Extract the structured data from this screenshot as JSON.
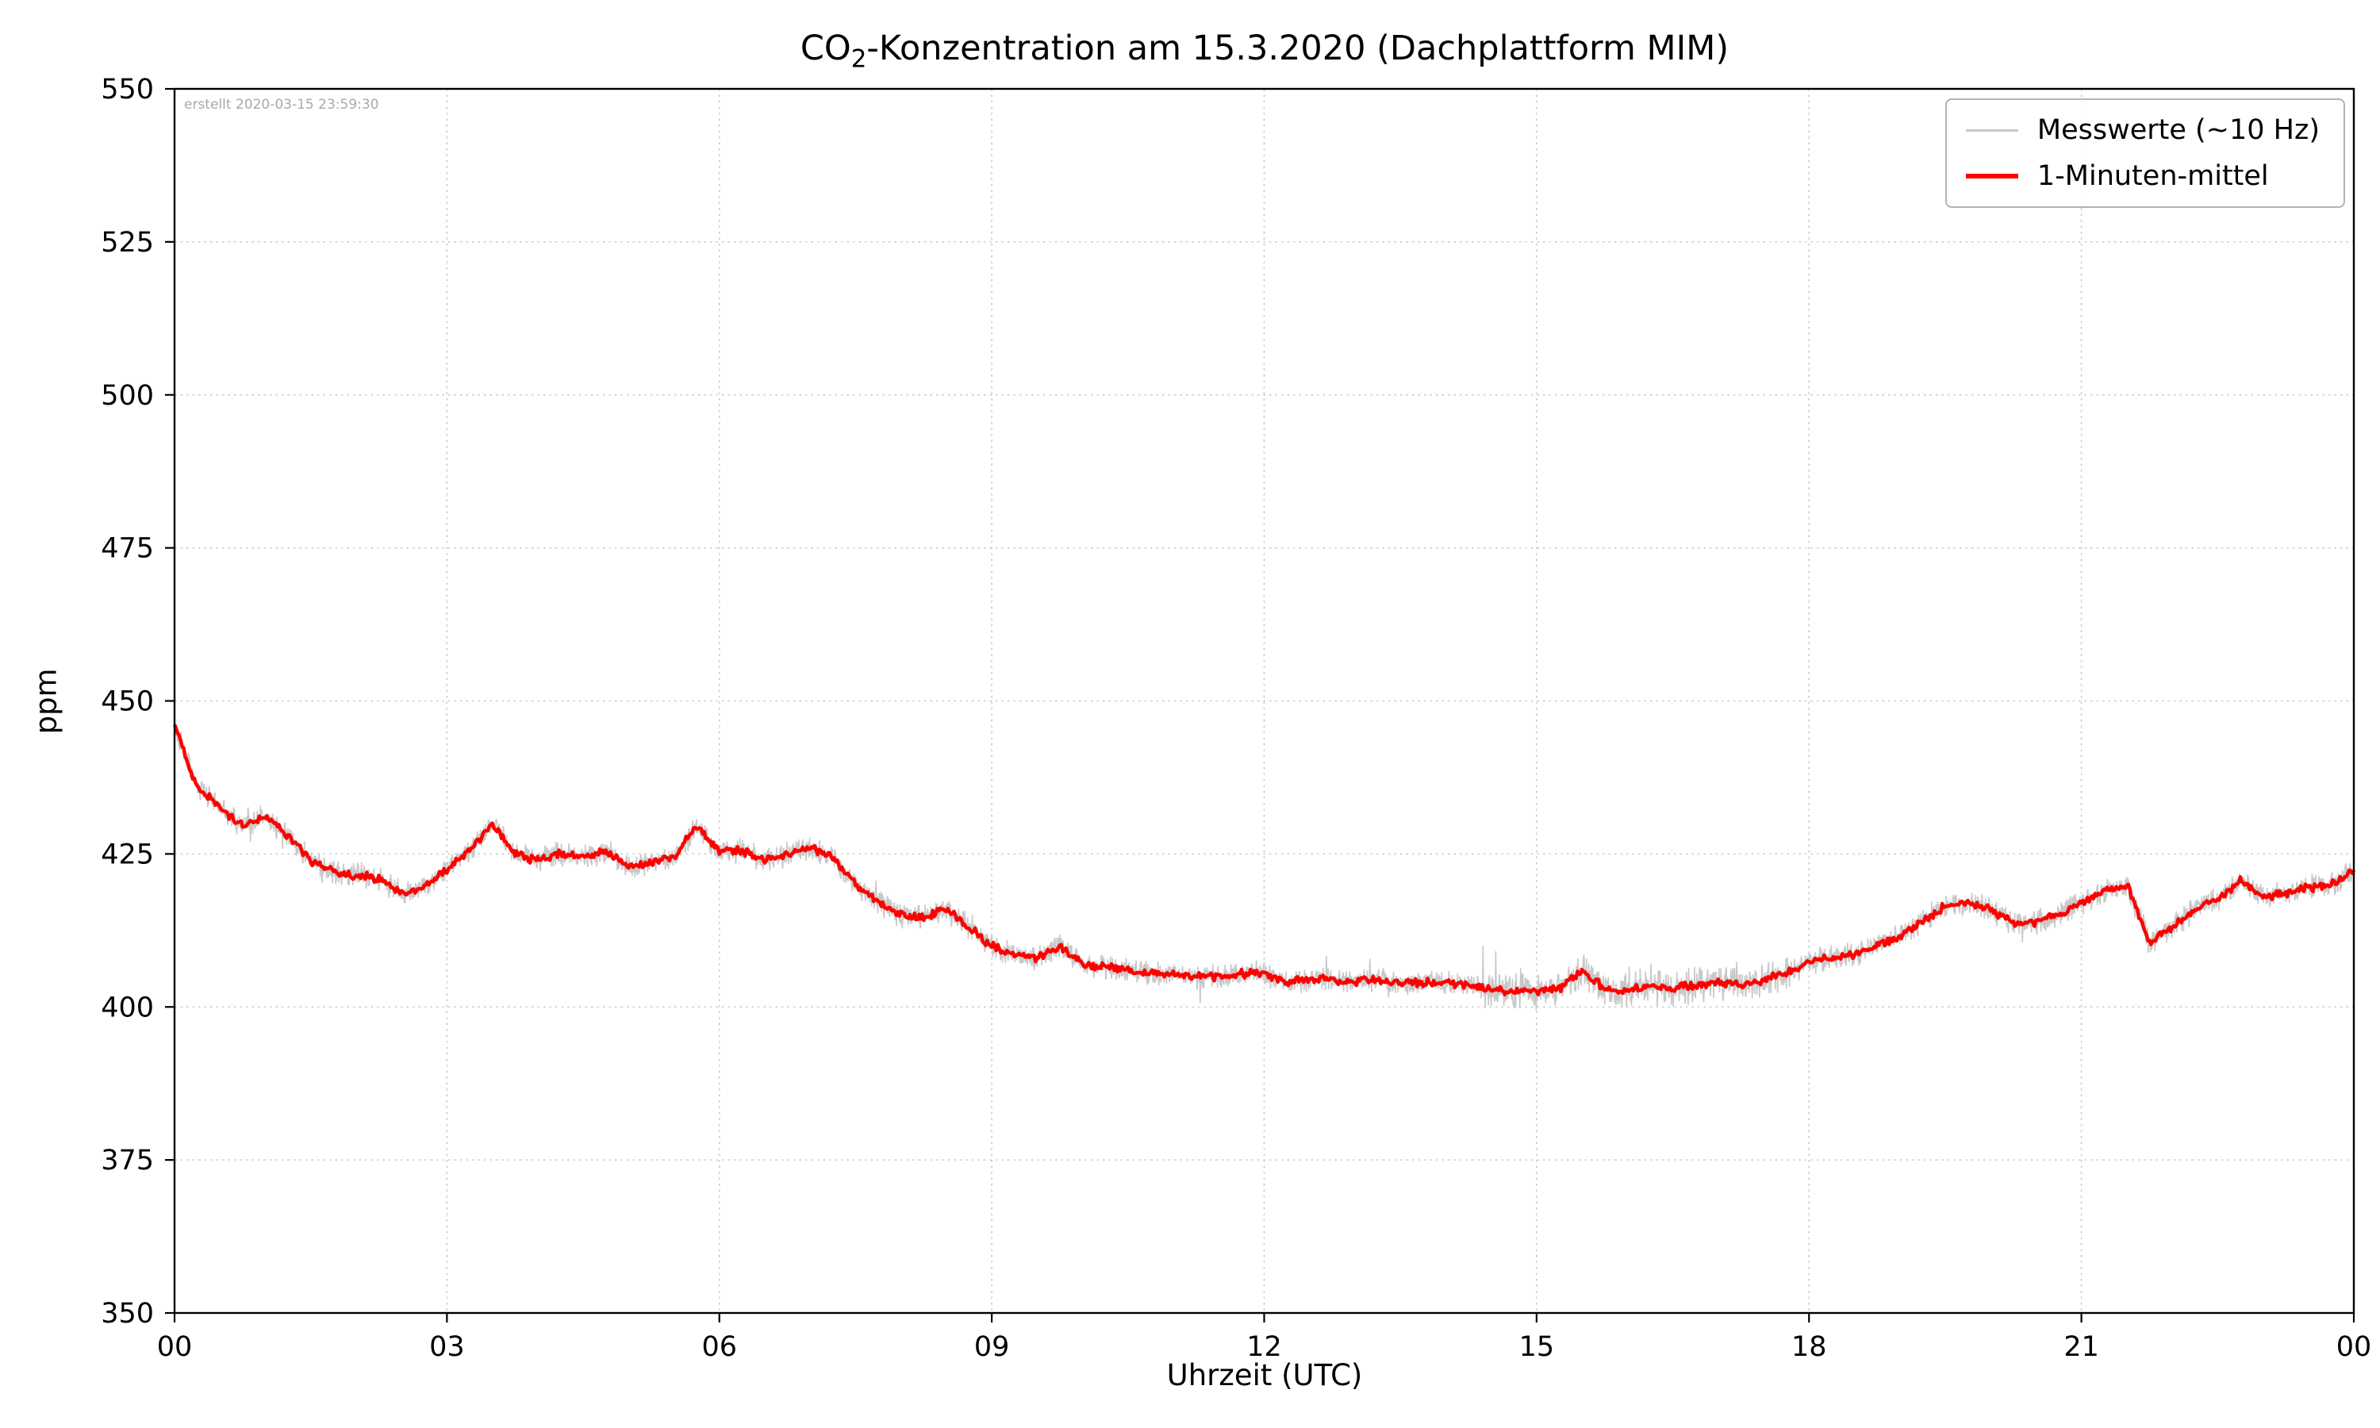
{
  "title": {
    "prefix": "CO",
    "sub": "2",
    "suffix": "-Konzentration am 15.3.2020 (Dachplattform MIM)"
  },
  "watermark": "erstellt 2020-03-15 23:59:30",
  "chart_data": {
    "type": "line",
    "title": "CO₂-Konzentration am 15.3.2020 (Dachplattform MIM)",
    "xlabel": "Uhrzeit (UTC)",
    "ylabel": "ppm",
    "xlim": [
      0,
      24
    ],
    "ylim": [
      350,
      550
    ],
    "xticks": [
      0,
      3,
      6,
      9,
      12,
      15,
      18,
      21,
      24
    ],
    "xtick_labels": [
      "00",
      "03",
      "06",
      "09",
      "12",
      "15",
      "18",
      "21",
      "00"
    ],
    "yticks": [
      350,
      375,
      400,
      425,
      450,
      475,
      500,
      525,
      550
    ],
    "ytick_labels": [
      "350",
      "375",
      "400",
      "425",
      "450",
      "475",
      "500",
      "525",
      "550"
    ],
    "grid": true,
    "legend_position": "upper right",
    "series": [
      {
        "name": "Messwerte (~10 Hz)",
        "color": "#c8c8c8",
        "role": "raw",
        "noise_base": 2.3,
        "noise_high": 3.4,
        "noise_high_range": [
          14.4,
          17.8
        ],
        "spike_prob": 0.012,
        "spike_max": 7.5
      },
      {
        "name": "1-Minuten-mittel",
        "color": "#ff0000",
        "role": "mean"
      }
    ],
    "x": [
      0,
      0.25,
      0.5,
      0.75,
      1,
      1.25,
      1.5,
      1.75,
      2,
      2.25,
      2.5,
      2.75,
      3,
      3.25,
      3.5,
      3.75,
      4,
      4.25,
      4.5,
      4.75,
      5,
      5.25,
      5.5,
      5.75,
      6,
      6.25,
      6.5,
      6.75,
      7,
      7.25,
      7.5,
      7.75,
      8,
      8.25,
      8.5,
      8.75,
      9,
      9.25,
      9.5,
      9.75,
      10,
      10.25,
      10.5,
      10.75,
      11,
      11.25,
      11.5,
      11.75,
      12,
      12.25,
      12.5,
      12.75,
      13,
      13.25,
      13.5,
      13.75,
      14,
      14.25,
      14.5,
      14.75,
      15,
      15.25,
      15.5,
      15.75,
      16,
      16.25,
      16.5,
      16.75,
      17,
      17.25,
      17.5,
      17.75,
      18,
      18.25,
      18.5,
      18.75,
      19,
      19.25,
      19.5,
      19.75,
      20,
      20.25,
      20.5,
      20.75,
      21,
      21.25,
      21.5,
      21.75,
      22,
      22.25,
      22.5,
      22.75,
      23,
      23.25,
      23.5,
      23.75,
      24
    ],
    "mean_ppm": [
      446,
      436,
      432.5,
      429.5,
      431,
      428,
      424,
      422,
      421.5,
      421,
      418.5,
      419.5,
      422.5,
      425.5,
      430,
      425,
      424,
      425,
      424.5,
      425.5,
      423,
      423.5,
      424.5,
      429.5,
      425.5,
      425.5,
      424,
      425,
      426,
      424.5,
      420,
      417,
      415,
      414.5,
      416,
      413,
      410,
      408.5,
      408,
      410,
      407,
      406.5,
      406,
      405.5,
      405.5,
      405,
      405,
      405.5,
      405.5,
      404,
      404.5,
      404.5,
      404,
      404.5,
      404,
      404,
      404,
      403.5,
      403,
      402.5,
      402.5,
      403,
      406,
      403,
      402.5,
      403.5,
      403,
      403.5,
      404,
      403.5,
      404.5,
      405.5,
      407.5,
      408,
      408.5,
      410,
      411.5,
      414,
      416.5,
      417,
      416,
      413.5,
      414,
      415,
      417,
      419,
      420,
      410.5,
      413,
      416,
      417.5,
      420.5,
      418,
      418.5,
      419.5,
      420,
      422.5
    ]
  }
}
